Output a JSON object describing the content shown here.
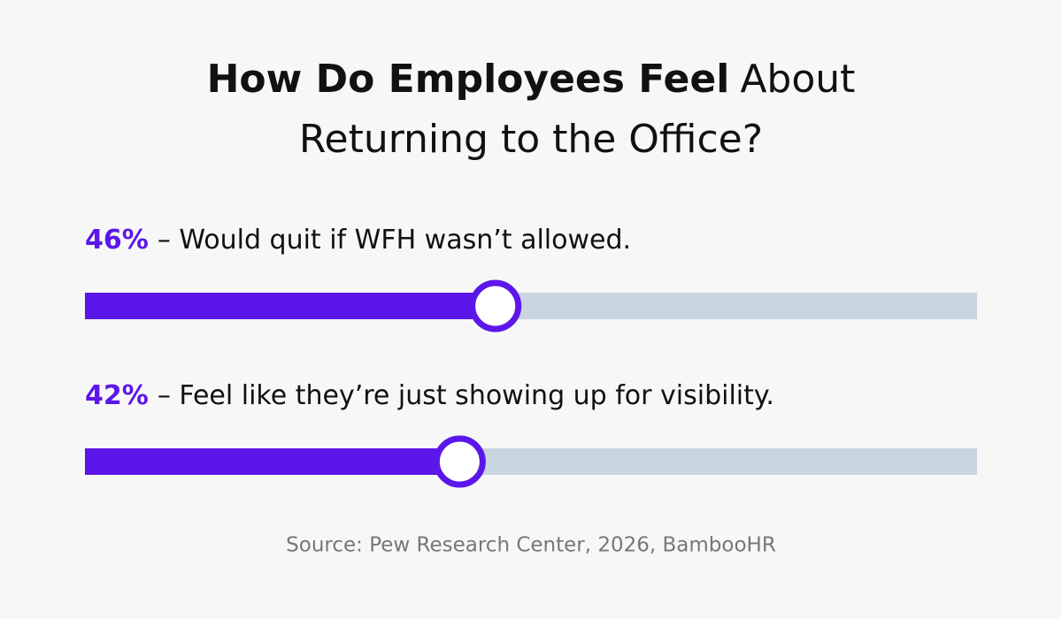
{
  "chart_data": {
    "type": "progress",
    "title": [
      "How Do Employees Feel",
      "About",
      "Returning to the Office?"
    ],
    "categories": [
      "– Would quit if WFH wasn’t allowed.",
      "– Feel like they’re just showing up for visibility."
    ],
    "values": [
      46,
      42
    ],
    "value_labels": [
      "46%",
      "42%"
    ],
    "xlim": [
      0,
      100
    ],
    "color": "#5b17ea",
    "track_color": "#c9d5e1",
    "source": "Source: Pew Research Center, 2026, BambooHR"
  }
}
